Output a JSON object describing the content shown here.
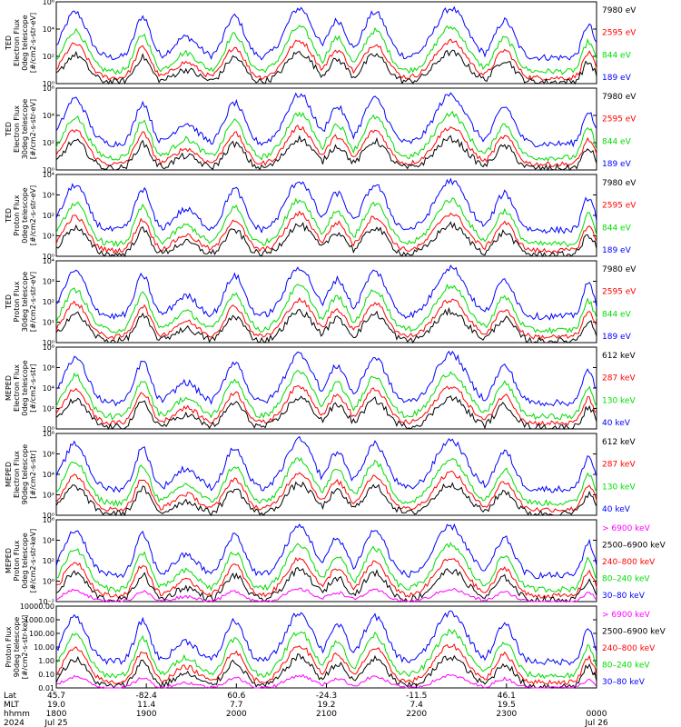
{
  "colors": {
    "blue": "#0000ff",
    "green": "#00dd00",
    "red": "#ff0000",
    "black": "#000000",
    "magenta": "#ff00ff",
    "frame": "#000000"
  },
  "chart_data": [
    {
      "type": "line",
      "ylabel_lines": [
        "TED",
        "Electron Flux",
        "0deg telescope",
        "[#/cm2-s-str-eV]"
      ],
      "yticks": [
        "10⁶",
        "10⁴",
        "10²",
        "10⁰"
      ],
      "yscale": "log",
      "ylim": [
        1,
        1000000
      ],
      "series": [
        {
          "name": "7980 eV",
          "color": "black"
        },
        {
          "name": "2595 eV",
          "color": "red"
        },
        {
          "name": "844 eV",
          "color": "green"
        },
        {
          "name": "189 eV",
          "color": "blue"
        }
      ]
    },
    {
      "type": "line",
      "ylabel_lines": [
        "TED",
        "Electron Flux",
        "30deg telescope",
        "[#/cm2-s-str-eV]"
      ],
      "yticks": [
        "10⁶",
        "10⁴",
        "10²",
        "10⁰"
      ],
      "yscale": "log",
      "ylim": [
        1,
        1000000
      ],
      "series": [
        {
          "name": "7980 eV",
          "color": "black"
        },
        {
          "name": "2595 eV",
          "color": "red"
        },
        {
          "name": "844 eV",
          "color": "green"
        },
        {
          "name": "189 eV",
          "color": "blue"
        }
      ]
    },
    {
      "type": "line",
      "ylabel_lines": [
        "TED",
        "Proton Flux",
        "0deg telescope",
        "[#/cm2-s-str-eV]"
      ],
      "yticks": [
        "10⁴",
        "10³",
        "10²",
        "10¹",
        "10⁰"
      ],
      "yscale": "log",
      "ylim": [
        1,
        10000
      ],
      "series": [
        {
          "name": "7980 eV",
          "color": "black"
        },
        {
          "name": "2595 eV",
          "color": "red"
        },
        {
          "name": "844 eV",
          "color": "green"
        },
        {
          "name": "189 eV",
          "color": "blue"
        }
      ]
    },
    {
      "type": "line",
      "ylabel_lines": [
        "TED",
        "Proton Flux",
        "30deg telescope",
        "[#/cm2-s-str-eV]"
      ],
      "yticks": [
        "10⁴",
        "10³",
        "10²",
        "10¹",
        "10⁰"
      ],
      "yscale": "log",
      "ylim": [
        1,
        10000
      ],
      "series": [
        {
          "name": "7980 eV",
          "color": "black"
        },
        {
          "name": "2595 eV",
          "color": "red"
        },
        {
          "name": "844 eV",
          "color": "green"
        },
        {
          "name": "189 eV",
          "color": "blue"
        }
      ]
    },
    {
      "type": "line",
      "ylabel_lines": [
        "MEPED",
        "Electron Flux",
        "0deg telescope",
        "[#/cm2-s-str]"
      ],
      "yticks": [
        "10⁸",
        "10⁶",
        "10⁴",
        "10²",
        "10⁰"
      ],
      "yscale": "log",
      "ylim": [
        1,
        100000000
      ],
      "series": [
        {
          "name": "612 keV",
          "color": "black"
        },
        {
          "name": "287 keV",
          "color": "red"
        },
        {
          "name": "130 keV",
          "color": "green"
        },
        {
          "name": "40 keV",
          "color": "blue"
        }
      ]
    },
    {
      "type": "line",
      "ylabel_lines": [
        "MEPED",
        "Electron Flux",
        "90deg telescope",
        "[#/cm2-s-str]"
      ],
      "yticks": [
        "10⁸",
        "10⁶",
        "10⁴",
        "10²",
        "10⁰"
      ],
      "yscale": "log",
      "ylim": [
        1,
        100000000
      ],
      "series": [
        {
          "name": "612 keV",
          "color": "black"
        },
        {
          "name": "287 keV",
          "color": "red"
        },
        {
          "name": "130 keV",
          "color": "green"
        },
        {
          "name": "40 keV",
          "color": "blue"
        }
      ]
    },
    {
      "type": "line",
      "ylabel_lines": [
        "MEPED",
        "Proton Flux",
        "0deg telescope",
        "[#/cm2-s-str-keV]"
      ],
      "yticks": [
        "10⁶",
        "10⁴",
        "10²",
        "10⁰",
        "10⁻²"
      ],
      "yscale": "log",
      "ylim": [
        0.01,
        1000000
      ],
      "series": [
        {
          "name": "> 6900 keV",
          "color": "magenta"
        },
        {
          "name": "2500–6900 keV",
          "color": "black"
        },
        {
          "name": "240–800 keV",
          "color": "red"
        },
        {
          "name": "80–240 keV",
          "color": "green"
        },
        {
          "name": "30–80 keV",
          "color": "blue"
        }
      ]
    },
    {
      "type": "line",
      "ylabel_lines": [
        "Proton Flux",
        "90deg telescope",
        "[#/cm2-s-str-keV]"
      ],
      "yticks": [
        "10000.00",
        "1000.00",
        "100.00",
        "10.00",
        "1.00",
        "0.10",
        "0.01"
      ],
      "yscale": "log",
      "ylim": [
        0.01,
        10000
      ],
      "series": [
        {
          "name": "> 6900 keV",
          "color": "magenta"
        },
        {
          "name": "2500–6900 keV",
          "color": "black"
        },
        {
          "name": "240–800 keV",
          "color": "red"
        },
        {
          "name": "80–240 keV",
          "color": "green"
        },
        {
          "name": "30–80 keV",
          "color": "blue"
        }
      ]
    }
  ],
  "xaxis": {
    "row_labels": [
      "Lat",
      "MLT",
      "hhmm",
      "2024"
    ],
    "ticks": [
      {
        "lat": "45.7",
        "mlt": "19.0",
        "hhmm": "1800",
        "date": "Jul 25"
      },
      {
        "lat": "-82.4",
        "mlt": "11.4",
        "hhmm": "1900",
        "date": ""
      },
      {
        "lat": "60.6",
        "mlt": "7.7",
        "hhmm": "2000",
        "date": ""
      },
      {
        "lat": "-24.3",
        "mlt": "19.2",
        "hhmm": "2100",
        "date": ""
      },
      {
        "lat": "-11.5",
        "mlt": "7.4",
        "hhmm": "2200",
        "date": ""
      },
      {
        "lat": "46.1",
        "mlt": "19.5",
        "hhmm": "2300",
        "date": ""
      },
      {
        "lat": "",
        "mlt": "",
        "hhmm": "0000",
        "date": "Jul 26"
      }
    ]
  }
}
